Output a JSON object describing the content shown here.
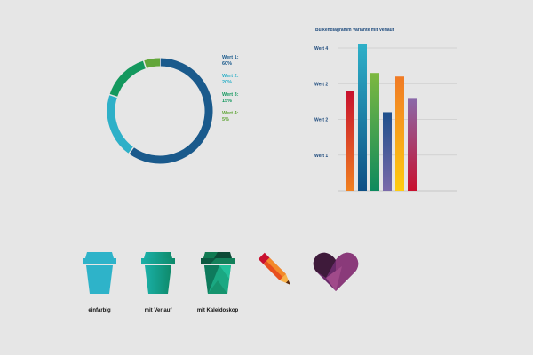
{
  "chart_data": [
    {
      "type": "pie",
      "labels": [
        "Wert 1:",
        "Wert 2:",
        "Wert 3:",
        "Wert 4:"
      ],
      "percent_labels": [
        "60%",
        "20%",
        "15%",
        "5%"
      ],
      "values": [
        60,
        20,
        15,
        5
      ],
      "colors": [
        "#1a5a8c",
        "#2eb0c8",
        "#14985e",
        "#62a63a"
      ]
    },
    {
      "type": "bar",
      "title": "Bulkendiagramm Variante mit Verlauf",
      "categories": [
        "",
        "",
        "",
        "",
        "",
        ""
      ],
      "values": [
        2.8,
        4.1,
        3.3,
        2.2,
        3.2,
        2.6
      ],
      "ytick_labels": [
        "Wert 1",
        "Wert 2",
        "Wert 2",
        "Wert 4"
      ],
      "ylim": [
        0,
        4.1
      ],
      "grid": true,
      "gradients": [
        [
          "#c8102e",
          "#f08020"
        ],
        [
          "#2eb0c8",
          "#0d4f85"
        ],
        [
          "#7db840",
          "#0e8a5e"
        ],
        [
          "#1d4f8c",
          "#7a6aaa"
        ],
        [
          "#f07a25",
          "#ffcc10"
        ],
        [
          "#8a6aaa",
          "#c8102e"
        ]
      ]
    }
  ],
  "icons": {
    "captions": [
      "einfarbig",
      "mit Verlauf",
      "mit Kaleidoskop"
    ]
  }
}
